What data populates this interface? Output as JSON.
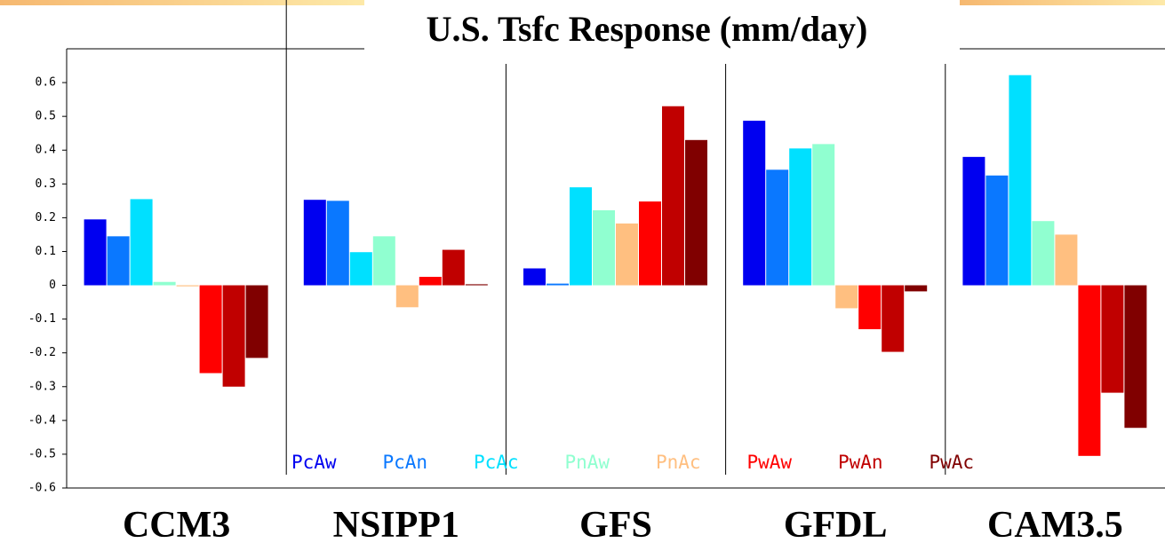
{
  "chart_data": {
    "type": "bar",
    "title": "U.S. Tsfc Response (mm/day)",
    "categories": [
      "CCM3",
      "NSIPP1",
      "GFS",
      "GFDL",
      "CAM3.5"
    ],
    "series": [
      {
        "name": "PcAw",
        "color": "#0000f0",
        "values": [
          0.195,
          0.253,
          0.05,
          0.487,
          0.38
        ]
      },
      {
        "name": "PcAn",
        "color": "#0a78ff",
        "values": [
          0.145,
          0.25,
          0.005,
          0.342,
          0.325
        ]
      },
      {
        "name": "PcAc",
        "color": "#00e0ff",
        "values": [
          0.255,
          0.098,
          0.29,
          0.405,
          0.622
        ]
      },
      {
        "name": "PnAw",
        "color": "#90ffd0",
        "values": [
          0.01,
          0.145,
          0.222,
          0.418,
          0.19
        ]
      },
      {
        "name": "PnAc",
        "color": "#ffbf80",
        "values": [
          -0.003,
          -0.065,
          0.183,
          -0.068,
          0.15
        ]
      },
      {
        "name": "PwAw",
        "color": "#ff0000",
        "values": [
          -0.26,
          0.025,
          0.248,
          -0.13,
          -0.505
        ]
      },
      {
        "name": "PwAn",
        "color": "#c00000",
        "values": [
          -0.3,
          0.105,
          0.53,
          -0.197,
          -0.318
        ]
      },
      {
        "name": "PwAc",
        "color": "#800000",
        "values": [
          -0.215,
          0.003,
          0.43,
          -0.018,
          -0.422
        ]
      }
    ],
    "ylim": [
      -0.6,
      0.7
    ],
    "yticks": [
      -0.6,
      -0.5,
      -0.4,
      -0.3,
      -0.2,
      -0.1,
      0,
      0.1,
      0.2,
      0.3,
      0.4,
      0.5,
      0.6
    ],
    "grid": false
  }
}
